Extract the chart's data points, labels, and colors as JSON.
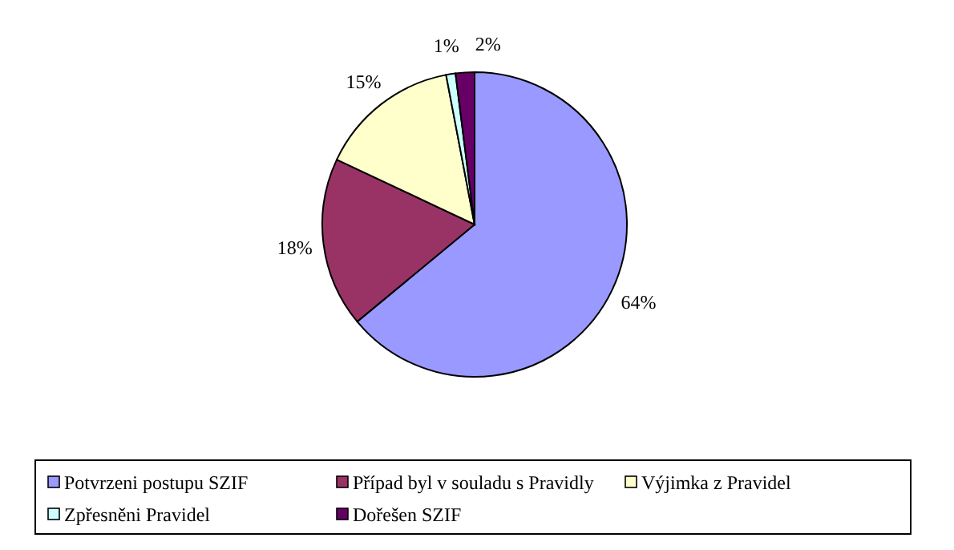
{
  "chart_data": {
    "type": "pie",
    "categories": [
      "Potvrzeni postupu SZIF",
      "Případ byl v souladu s Pravidly",
      "Výjimka z Pravidel",
      "Zpřesněni Pravidel",
      "Dořešen SZIF"
    ],
    "values": [
      64,
      18,
      15,
      1,
      2
    ],
    "colors": [
      "#9999ff",
      "#993366",
      "#ffffcc",
      "#ccffff",
      "#660066"
    ],
    "value_labels": [
      "64%",
      "18%",
      "15%",
      "1%",
      "2%"
    ],
    "legend": "bottom"
  }
}
